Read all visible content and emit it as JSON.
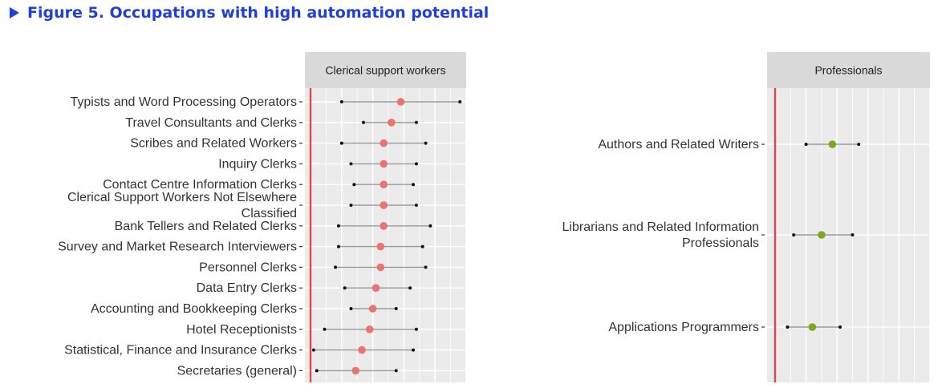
{
  "figure": {
    "title": "Figure 5. Occupations with high automation potential"
  },
  "colors": {
    "title": "#1f3fd6",
    "clerical_point": "#e8766f",
    "professional_point": "#7aa81e",
    "reference_line": "#e0454b",
    "panel_bg": "#ebebeb",
    "strip_bg": "#d9d9d9",
    "range": "#999999"
  },
  "chart_data": [
    {
      "type": "scatter",
      "panel": "Clerical support workers",
      "xlim": [
        0,
        1
      ],
      "grid": true,
      "categories": [
        "Typists and Word Processing Operators",
        "Travel Consultants and Clerks",
        "Scribes and Related Workers",
        "Inquiry Clerks",
        "Contact Centre Information Clerks",
        "Clerical Support Workers Not Elsewhere Classified",
        "Bank Tellers and Related Clerks",
        "Survey and Market Research Interviewers",
        "Personnel Clerks",
        "Data Entry Clerks",
        "Accounting and Bookkeeping Clerks",
        "Hotel Receptionists",
        "Statistical, Finance and Insurance Clerks",
        "Secretaries (general)"
      ],
      "category_lines": [
        [
          "Typists and Word Processing Operators"
        ],
        [
          "Travel Consultants and Clerks"
        ],
        [
          "Scribes and Related Workers"
        ],
        [
          "Inquiry Clerks"
        ],
        [
          "Contact Centre Information Clerks"
        ],
        [
          "Clerical Support Workers Not Elsewhere",
          "Classified"
        ],
        [
          "Bank Tellers and Related Clerks"
        ],
        [
          "Survey and Market Research Interviewers"
        ],
        [
          "Personnel Clerks"
        ],
        [
          "Data Entry Clerks"
        ],
        [
          "Accounting and Bookkeeping Clerks"
        ],
        [
          "Hotel Receptionists"
        ],
        [
          "Statistical, Finance and Insurance Clerks"
        ],
        [
          "Secretaries (general)"
        ]
      ],
      "values": [
        0.58,
        0.52,
        0.47,
        0.47,
        0.47,
        0.47,
        0.47,
        0.45,
        0.45,
        0.42,
        0.4,
        0.38,
        0.33,
        0.29
      ],
      "low": [
        0.2,
        0.34,
        0.2,
        0.26,
        0.28,
        0.26,
        0.18,
        0.18,
        0.16,
        0.22,
        0.26,
        0.09,
        0.02,
        0.04
      ],
      "high": [
        0.96,
        0.68,
        0.74,
        0.68,
        0.66,
        0.68,
        0.77,
        0.72,
        0.74,
        0.64,
        0.55,
        0.68,
        0.66,
        0.55
      ]
    },
    {
      "type": "scatter",
      "panel": "Professionals",
      "xlim": [
        0,
        1
      ],
      "grid": true,
      "categories": [
        "Authors and Related Writers",
        "Librarians and Related Information Professionals",
        "Applications Programmers"
      ],
      "category_lines": [
        [
          "Authors and Related Writers"
        ],
        [
          "Librarians and Related Information",
          "Professionals"
        ],
        [
          "Applications Programmers"
        ]
      ],
      "values": [
        0.37,
        0.3,
        0.24
      ],
      "low": [
        0.2,
        0.12,
        0.08
      ],
      "high": [
        0.54,
        0.5,
        0.42
      ]
    }
  ]
}
